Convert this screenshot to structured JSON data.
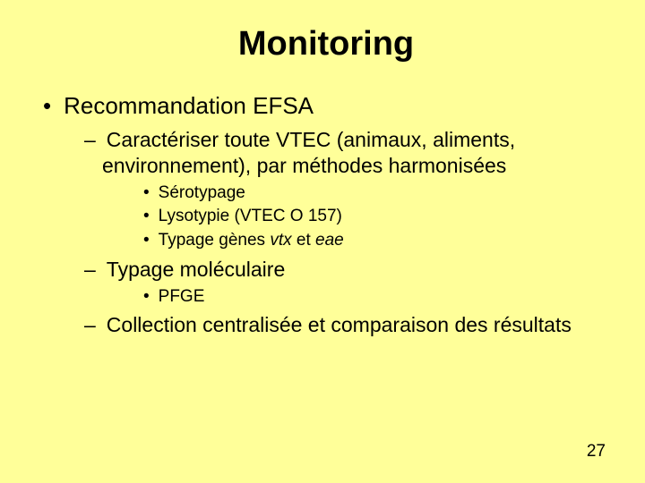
{
  "colors": {
    "background": "#ffff99",
    "text": "#000000"
  },
  "typography": {
    "family": "Arial",
    "title_size_pt": 38,
    "lvl1_size_pt": 26,
    "lvl2_size_pt": 23,
    "lvl3_size_pt": 19,
    "pagenum_size_pt": 19
  },
  "title": "Monitoring",
  "bullets": {
    "lvl1": {
      "item1": "Recommandation EFSA"
    },
    "lvl2": {
      "item1": "Caractériser toute VTEC (animaux, aliments, environnement), par méthodes harmonisées",
      "item2": "Typage moléculaire",
      "item3": "Collection centralisée et comparaison des résultats"
    },
    "lvl3a": {
      "i1": "Sérotypage",
      "i2": "Lysotypie (VTEC O 157)",
      "i3_prefix": "Typage gènes ",
      "i3_it1": "vtx",
      "i3_mid": " et ",
      "i3_it2": "eae"
    },
    "lvl3b": {
      "i1": "PFGE"
    }
  },
  "page_number": "27"
}
